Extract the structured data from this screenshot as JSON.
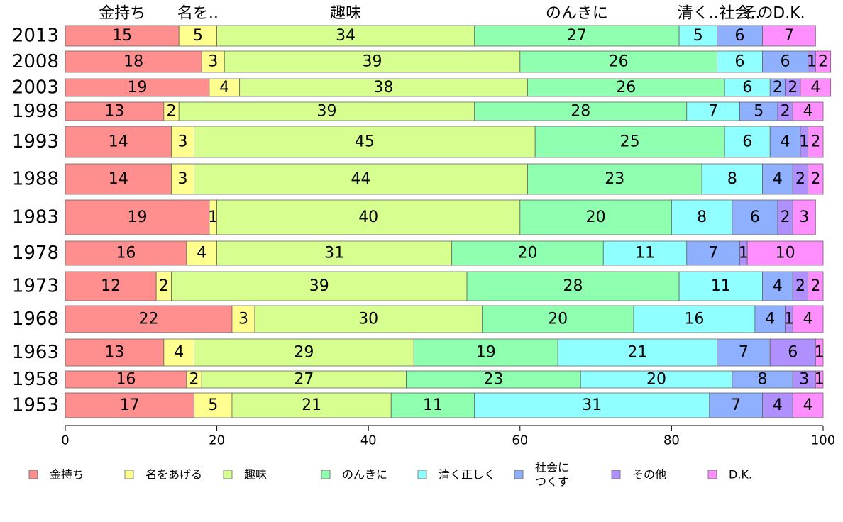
{
  "chart_data": {
    "type": "bar",
    "orientation": "horizontal",
    "stacked": true,
    "categories": [
      "2013",
      "2008",
      "2003",
      "1998",
      "1993",
      "1988",
      "1983",
      "1978",
      "1973",
      "1968",
      "1963",
      "1958",
      "1953"
    ],
    "series": [
      {
        "name": "金持ち",
        "top_label": "金持ち",
        "color": "#ff8f8f",
        "values": [
          15,
          18,
          19,
          13,
          14,
          14,
          19,
          16,
          12,
          22,
          13,
          16,
          17
        ]
      },
      {
        "name": "名をあげる",
        "top_label": "名を..",
        "color": "#ffff8f",
        "values": [
          5,
          3,
          4,
          2,
          3,
          3,
          1,
          4,
          2,
          3,
          4,
          2,
          5
        ]
      },
      {
        "name": "趣味",
        "top_label": "趣味",
        "color": "#d7ff8f",
        "values": [
          34,
          39,
          38,
          39,
          45,
          44,
          40,
          31,
          39,
          30,
          29,
          27,
          21
        ]
      },
      {
        "name": "のんきに",
        "top_label": "のんきに",
        "color": "#8fffb0",
        "values": [
          27,
          26,
          26,
          28,
          25,
          23,
          20,
          20,
          28,
          20,
          19,
          23,
          11
        ]
      },
      {
        "name": "清く正しく",
        "top_label": "清く..",
        "color": "#8fffff",
        "values": [
          5,
          6,
          6,
          7,
          6,
          8,
          8,
          11,
          11,
          16,
          21,
          20,
          31
        ]
      },
      {
        "name": "社会につくす",
        "legend_lines": [
          "社会に",
          "つくす"
        ],
        "top_label": "社会..",
        "color": "#8fb0ff",
        "values": [
          6,
          6,
          2,
          5,
          4,
          4,
          6,
          7,
          4,
          4,
          7,
          8,
          7
        ]
      },
      {
        "name": "その他",
        "top_label": "その..",
        "color": "#b08fff",
        "values": [
          0,
          1,
          2,
          2,
          1,
          2,
          2,
          1,
          2,
          1,
          6,
          3,
          4
        ]
      },
      {
        "name": "D.K.",
        "top_label": "D.K.",
        "color": "#ff8fff",
        "values": [
          7,
          2,
          4,
          4,
          2,
          2,
          3,
          10,
          2,
          4,
          1,
          1,
          4
        ]
      }
    ],
    "xlim": [
      0,
      100
    ],
    "xticks": [
      "0",
      "20",
      "40",
      "60",
      "80",
      "100"
    ],
    "xlabel": "",
    "ylabel": "",
    "title": "",
    "legend_position": "bottom",
    "grid": false
  }
}
